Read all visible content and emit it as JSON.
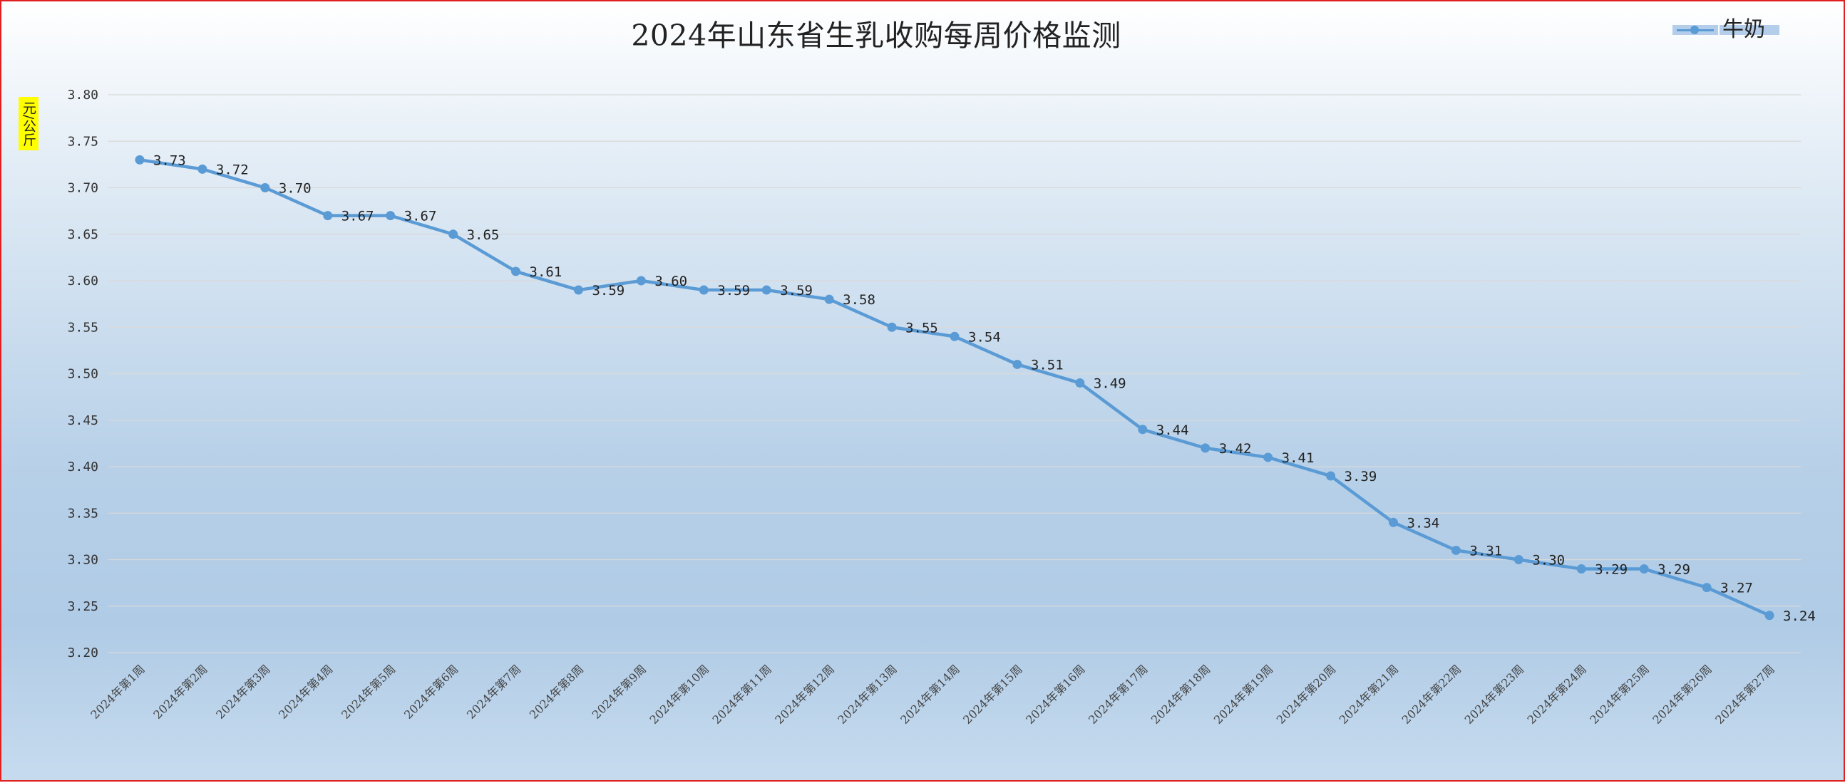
{
  "chart_data": {
    "type": "line",
    "title": "2024年山东省生乳收购每周价格监测",
    "ylabel": "元/公斤",
    "xlabel": "",
    "ylim": [
      3.2,
      3.8
    ],
    "ytick_labels": [
      "3.20",
      "3.25",
      "3.30",
      "3.35",
      "3.40",
      "3.45",
      "3.50",
      "3.55",
      "3.60",
      "3.65",
      "3.70",
      "3.75",
      "3.80"
    ],
    "grid": true,
    "legend_position": "top-right",
    "categories": [
      "2024年第1周",
      "2024年第2周",
      "2024年第3周",
      "2024年第4周",
      "2024年第5周",
      "2024年第6周",
      "2024年第7周",
      "2024年第8周",
      "2024年第9周",
      "2024年第10周",
      "2024年第11周",
      "2024年第12周",
      "2024年第13周",
      "2024年第14周",
      "2024年第15周",
      "2024年第16周",
      "2024年第17周",
      "2024年第18周",
      "2024年第19周",
      "2024年第20周",
      "2024年第21周",
      "2024年第22周",
      "2024年第23周",
      "2024年第24周",
      "2024年第25周",
      "2024年第26周",
      "2024年第27周"
    ],
    "series": [
      {
        "name": "牛奶",
        "color": "#5b9bd5",
        "values": [
          3.73,
          3.72,
          3.7,
          3.67,
          3.67,
          3.65,
          3.61,
          3.59,
          3.6,
          3.59,
          3.59,
          3.58,
          3.55,
          3.54,
          3.51,
          3.49,
          3.44,
          3.42,
          3.41,
          3.39,
          3.34,
          3.31,
          3.3,
          3.29,
          3.29,
          3.27,
          3.24
        ],
        "labels": [
          "3.73",
          "3.72",
          "3.70",
          "3.67",
          "3.67",
          "3.65",
          "3.61",
          "3.59",
          "3.60",
          "3.59",
          "3.59",
          "3.58",
          "3.55",
          "3.54",
          "3.51",
          "3.49",
          "3.44",
          "3.42",
          "3.41",
          "3.39",
          "3.34",
          "3.31",
          "3.30",
          "3.29",
          "3.29",
          "3.27",
          "3.24"
        ]
      }
    ]
  }
}
